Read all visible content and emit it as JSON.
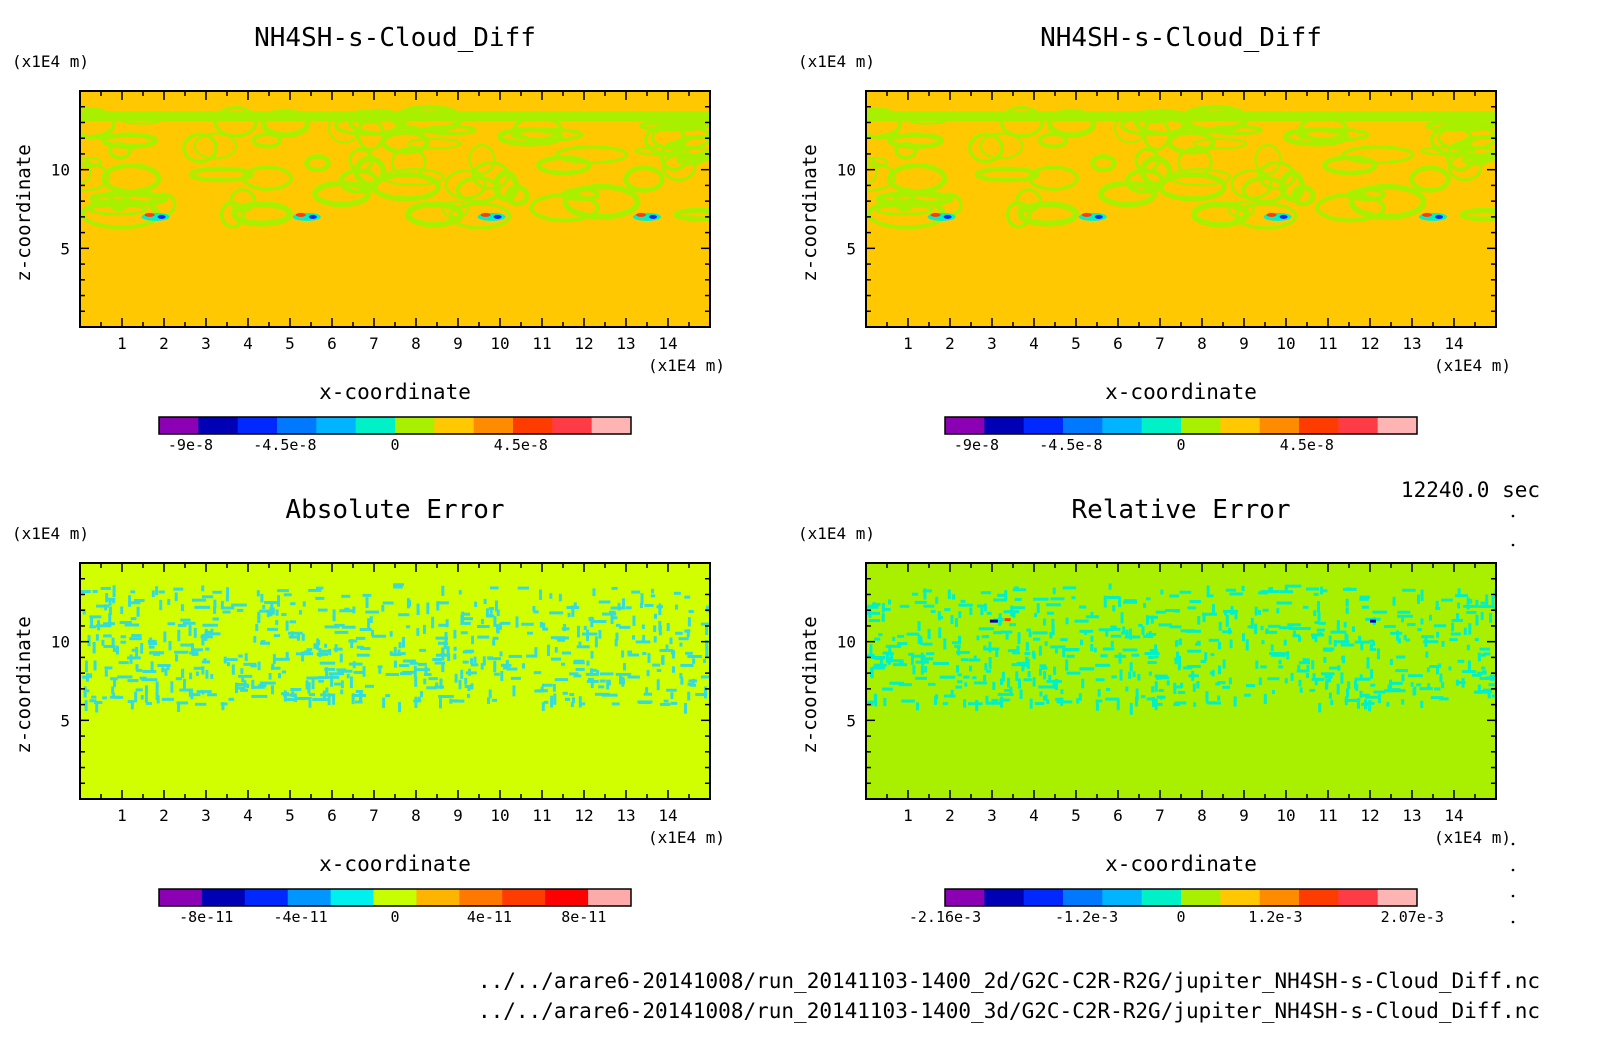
{
  "timestamp": "12240.0 sec",
  "file_paths": [
    "../../arare6-20141008/run_20141103-1400_2d/G2C-C2R-R2G/jupiter_NH4SH-s-Cloud_Diff.nc",
    "../../arare6-20141008/run_20141103-1400_3d/G2C-C2R-R2G/jupiter_NH4SH-s-Cloud_Diff.nc"
  ],
  "chart_data": [
    {
      "type": "heatmap",
      "title": "NH4SH-s-Cloud_Diff",
      "xlabel": "x-coordinate",
      "ylabel": "z-coordinate",
      "x_unit": "(x1E4 m)",
      "y_unit": "(x1E4 m)",
      "xlim": [
        0,
        15
      ],
      "ylim": [
        0,
        15
      ],
      "x_ticks": [
        "1",
        "2",
        "3",
        "4",
        "5",
        "6",
        "7",
        "8",
        "9",
        "10",
        "11",
        "12",
        "13",
        "14"
      ],
      "y_ticks": [
        "5",
        "10"
      ],
      "background_color": "#ffc800",
      "pattern_color": "#a8f000",
      "colorbar": {
        "colors": [
          "#8c00b4",
          "#0000b4",
          "#0028ff",
          "#0078ff",
          "#00b4ff",
          "#00f0c8",
          "#a8f000",
          "#ffc800",
          "#ff8c00",
          "#ff3c00",
          "#ff3c46",
          "#ffb4b4"
        ],
        "tick_labels": [
          "-9e-8",
          "-4.5e-8",
          "0",
          "4.5e-8"
        ]
      }
    },
    {
      "type": "heatmap",
      "title": "NH4SH-s-Cloud_Diff",
      "xlabel": "x-coordinate",
      "ylabel": "z-coordinate",
      "x_unit": "(x1E4 m)",
      "y_unit": "(x1E4 m)",
      "xlim": [
        0,
        15
      ],
      "ylim": [
        0,
        15
      ],
      "x_ticks": [
        "1",
        "2",
        "3",
        "4",
        "5",
        "6",
        "7",
        "8",
        "9",
        "10",
        "11",
        "12",
        "13",
        "14"
      ],
      "y_ticks": [
        "5",
        "10"
      ],
      "background_color": "#ffc800",
      "pattern_color": "#a8f000",
      "colorbar": {
        "colors": [
          "#8c00b4",
          "#0000b4",
          "#0028ff",
          "#0078ff",
          "#00b4ff",
          "#00f0c8",
          "#a8f000",
          "#ffc800",
          "#ff8c00",
          "#ff3c00",
          "#ff3c46",
          "#ffb4b4"
        ],
        "tick_labels": [
          "-9e-8",
          "-4.5e-8",
          "0",
          "4.5e-8"
        ]
      }
    },
    {
      "type": "heatmap",
      "title": "Absolute Error",
      "xlabel": "x-coordinate",
      "ylabel": "z-coordinate",
      "x_unit": "(x1E4 m)",
      "y_unit": "(x1E4 m)",
      "xlim": [
        0,
        15
      ],
      "ylim": [
        0,
        15
      ],
      "x_ticks": [
        "1",
        "2",
        "3",
        "4",
        "5",
        "6",
        "7",
        "8",
        "9",
        "10",
        "11",
        "12",
        "13",
        "14"
      ],
      "y_ticks": [
        "5",
        "10"
      ],
      "background_color": "#d2ff00",
      "pattern_color": "#32dcdc",
      "colorbar": {
        "colors": [
          "#8c00b4",
          "#0000b4",
          "#0028ff",
          "#0096ff",
          "#00f0f0",
          "#c8ff00",
          "#ffb400",
          "#ff7800",
          "#ff3c00",
          "#ff0000",
          "#ffaaaa"
        ],
        "tick_labels": [
          "-8e-11",
          "-4e-11",
          "0",
          "4e-11",
          "8e-11"
        ]
      }
    },
    {
      "type": "heatmap",
      "title": "Relative Error",
      "xlabel": "x-coordinate",
      "ylabel": "z-coordinate",
      "x_unit": "(x1E4 m)",
      "y_unit": "(x1E4 m)",
      "xlim": [
        0,
        15
      ],
      "ylim": [
        0,
        15
      ],
      "x_ticks": [
        "1",
        "2",
        "3",
        "4",
        "5",
        "6",
        "7",
        "8",
        "9",
        "10",
        "11",
        "12",
        "13",
        "14"
      ],
      "y_ticks": [
        "5",
        "10"
      ],
      "background_color": "#a8f000",
      "pattern_color": "#00f0c8",
      "colorbar": {
        "colors": [
          "#8c00b4",
          "#0000b4",
          "#0028ff",
          "#0078ff",
          "#00b4ff",
          "#00f0c8",
          "#a8f000",
          "#ffc800",
          "#ff8c00",
          "#ff3c00",
          "#ff3c46",
          "#ffb4b4"
        ],
        "tick_labels": [
          "-2.16e-3",
          "-1.2e-3",
          "0",
          "1.2e-3",
          "2.07e-3"
        ]
      }
    }
  ]
}
